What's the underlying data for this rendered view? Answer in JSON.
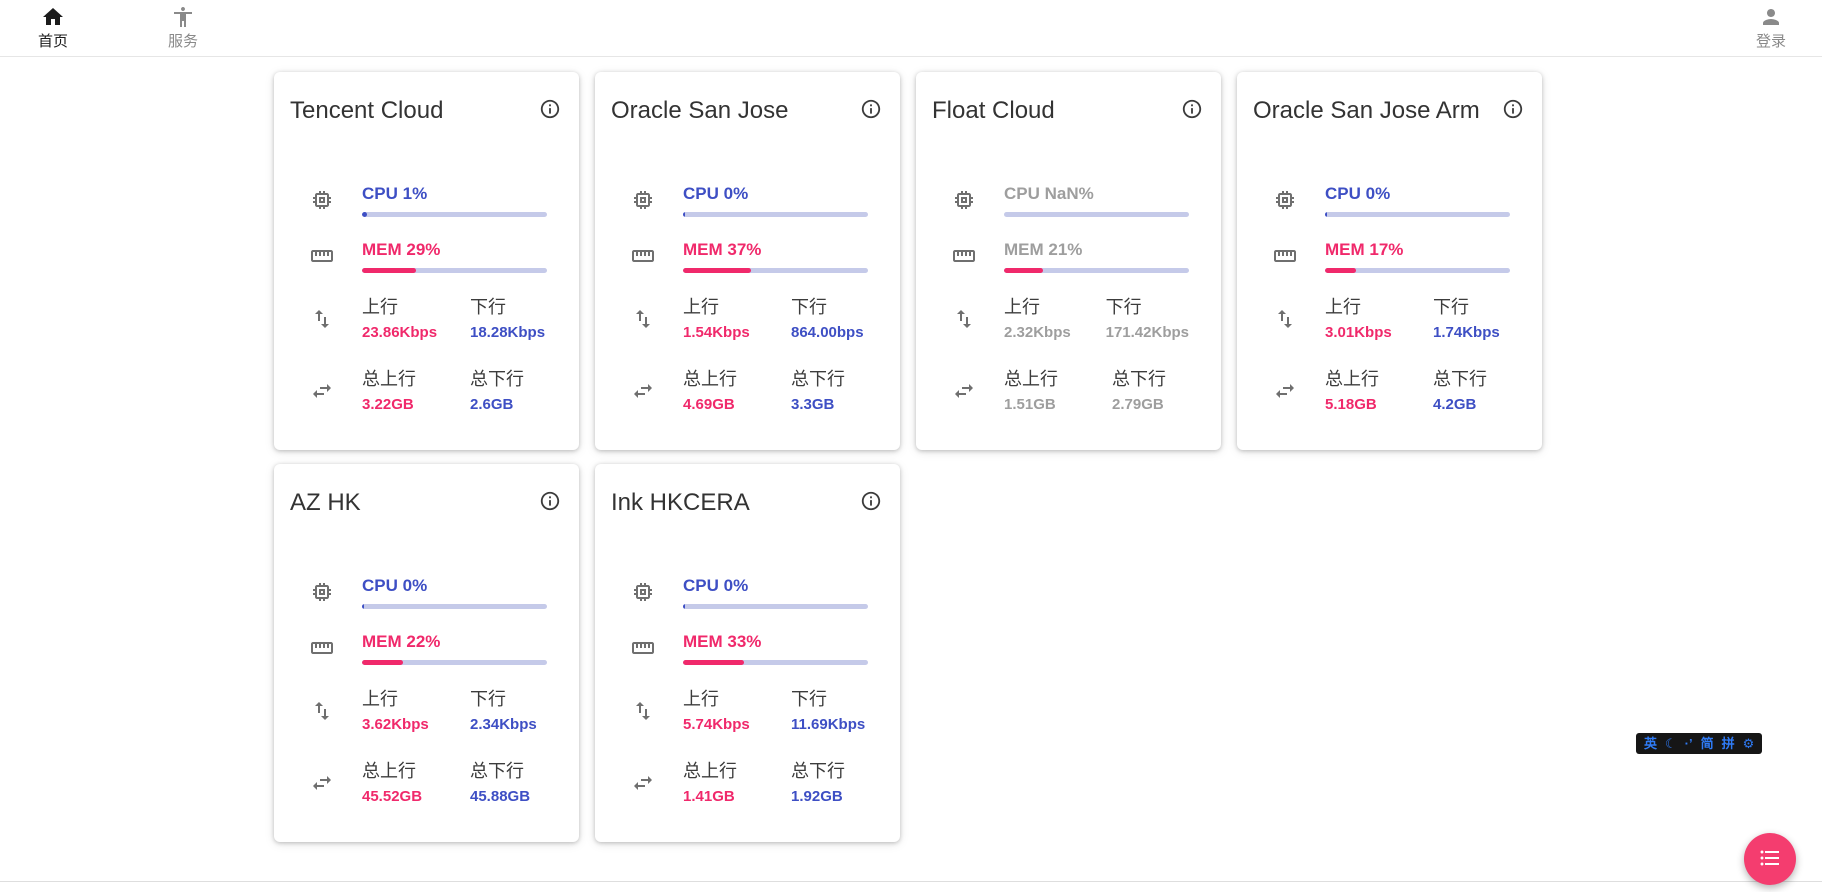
{
  "colors": {
    "blue": "#3e4fc4",
    "pink": "#f0296b",
    "track": "#c5cae9",
    "gray_value": "#9e9e9e",
    "fab": "#f43d6f",
    "ime_blue": "#2f7bf6"
  },
  "nav": {
    "home_label": "首页",
    "services_label": "服务",
    "login_label": "登录"
  },
  "cards": [
    {
      "name": "Tencent Cloud",
      "online": true,
      "cpu": {
        "label": "CPU 1%",
        "pct": 1
      },
      "mem": {
        "label": "MEM 29%",
        "pct": 29
      },
      "net": {
        "up_label": "上行",
        "up": "23.86Kbps",
        "down_label": "下行",
        "down": "18.28Kbps"
      },
      "total": {
        "up_label": "总上行",
        "up": "3.22GB",
        "down_label": "总下行",
        "down": "2.6GB"
      }
    },
    {
      "name": "Oracle San Jose",
      "online": true,
      "cpu": {
        "label": "CPU 0%",
        "pct": 0
      },
      "mem": {
        "label": "MEM 37%",
        "pct": 37
      },
      "net": {
        "up_label": "上行",
        "up": "1.54Kbps",
        "down_label": "下行",
        "down": "864.00bps"
      },
      "total": {
        "up_label": "总上行",
        "up": "4.69GB",
        "down_label": "总下行",
        "down": "3.3GB"
      }
    },
    {
      "name": "Float Cloud",
      "online": false,
      "cpu": {
        "label": "CPU NaN%",
        "pct": null
      },
      "mem": {
        "label": "MEM 21%",
        "pct": 21
      },
      "net": {
        "up_label": "上行",
        "up": "2.32Kbps",
        "down_label": "下行",
        "down": "171.42Kbps"
      },
      "total": {
        "up_label": "总上行",
        "up": "1.51GB",
        "down_label": "总下行",
        "down": "2.79GB"
      }
    },
    {
      "name": "Oracle San Jose Arm",
      "online": true,
      "cpu": {
        "label": "CPU 0%",
        "pct": 0
      },
      "mem": {
        "label": "MEM 17%",
        "pct": 17
      },
      "net": {
        "up_label": "上行",
        "up": "3.01Kbps",
        "down_label": "下行",
        "down": "1.74Kbps"
      },
      "total": {
        "up_label": "总上行",
        "up": "5.18GB",
        "down_label": "总下行",
        "down": "4.2GB"
      }
    },
    {
      "name": "AZ HK",
      "online": true,
      "cpu": {
        "label": "CPU 0%",
        "pct": 0
      },
      "mem": {
        "label": "MEM 22%",
        "pct": 22
      },
      "net": {
        "up_label": "上行",
        "up": "3.62Kbps",
        "down_label": "下行",
        "down": "2.34Kbps"
      },
      "total": {
        "up_label": "总上行",
        "up": "45.52GB",
        "down_label": "总下行",
        "down": "45.88GB"
      }
    },
    {
      "name": "Ink HKCERA",
      "online": true,
      "cpu": {
        "label": "CPU 0%",
        "pct": 0
      },
      "mem": {
        "label": "MEM 33%",
        "pct": 33
      },
      "net": {
        "up_label": "上行",
        "up": "5.74Kbps",
        "down_label": "下行",
        "down": "11.69Kbps"
      },
      "total": {
        "up_label": "总上行",
        "up": "1.41GB",
        "down_label": "总下行",
        "down": "1.92GB"
      }
    }
  ],
  "ime": {
    "items": [
      "英",
      "☾",
      "·’",
      "简",
      "拼",
      "⚙"
    ]
  }
}
